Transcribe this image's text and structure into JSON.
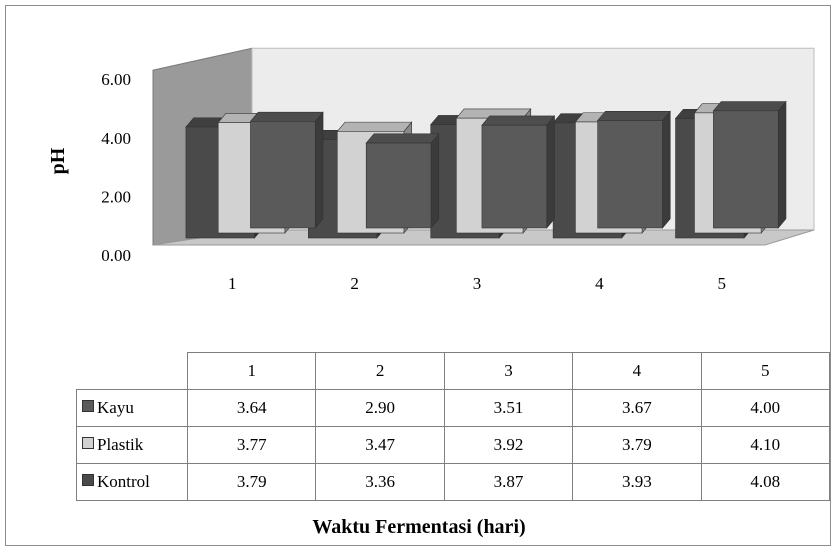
{
  "chart_data": {
    "type": "bar",
    "categories": [
      "1",
      "2",
      "3",
      "4",
      "5"
    ],
    "series": [
      {
        "name": "Kayu",
        "values": [
          3.64,
          2.9,
          3.51,
          3.67,
          4.0
        ],
        "color": "#5a5a5a"
      },
      {
        "name": "Plastik",
        "values": [
          3.77,
          3.47,
          3.92,
          3.79,
          4.1
        ],
        "color": "#d2d2d2"
      },
      {
        "name": "Kontrol",
        "values": [
          3.79,
          3.36,
          3.87,
          3.93,
          4.08
        ],
        "color": "#4a4a4a"
      }
    ],
    "xlabel": "Waktu Fermentasi (hari)",
    "ylabel": "pH",
    "yticks": [
      "0.00",
      "2.00",
      "4.00",
      "6.00"
    ],
    "ylim": [
      0,
      6
    ],
    "grid": false,
    "legend": "table-below"
  }
}
